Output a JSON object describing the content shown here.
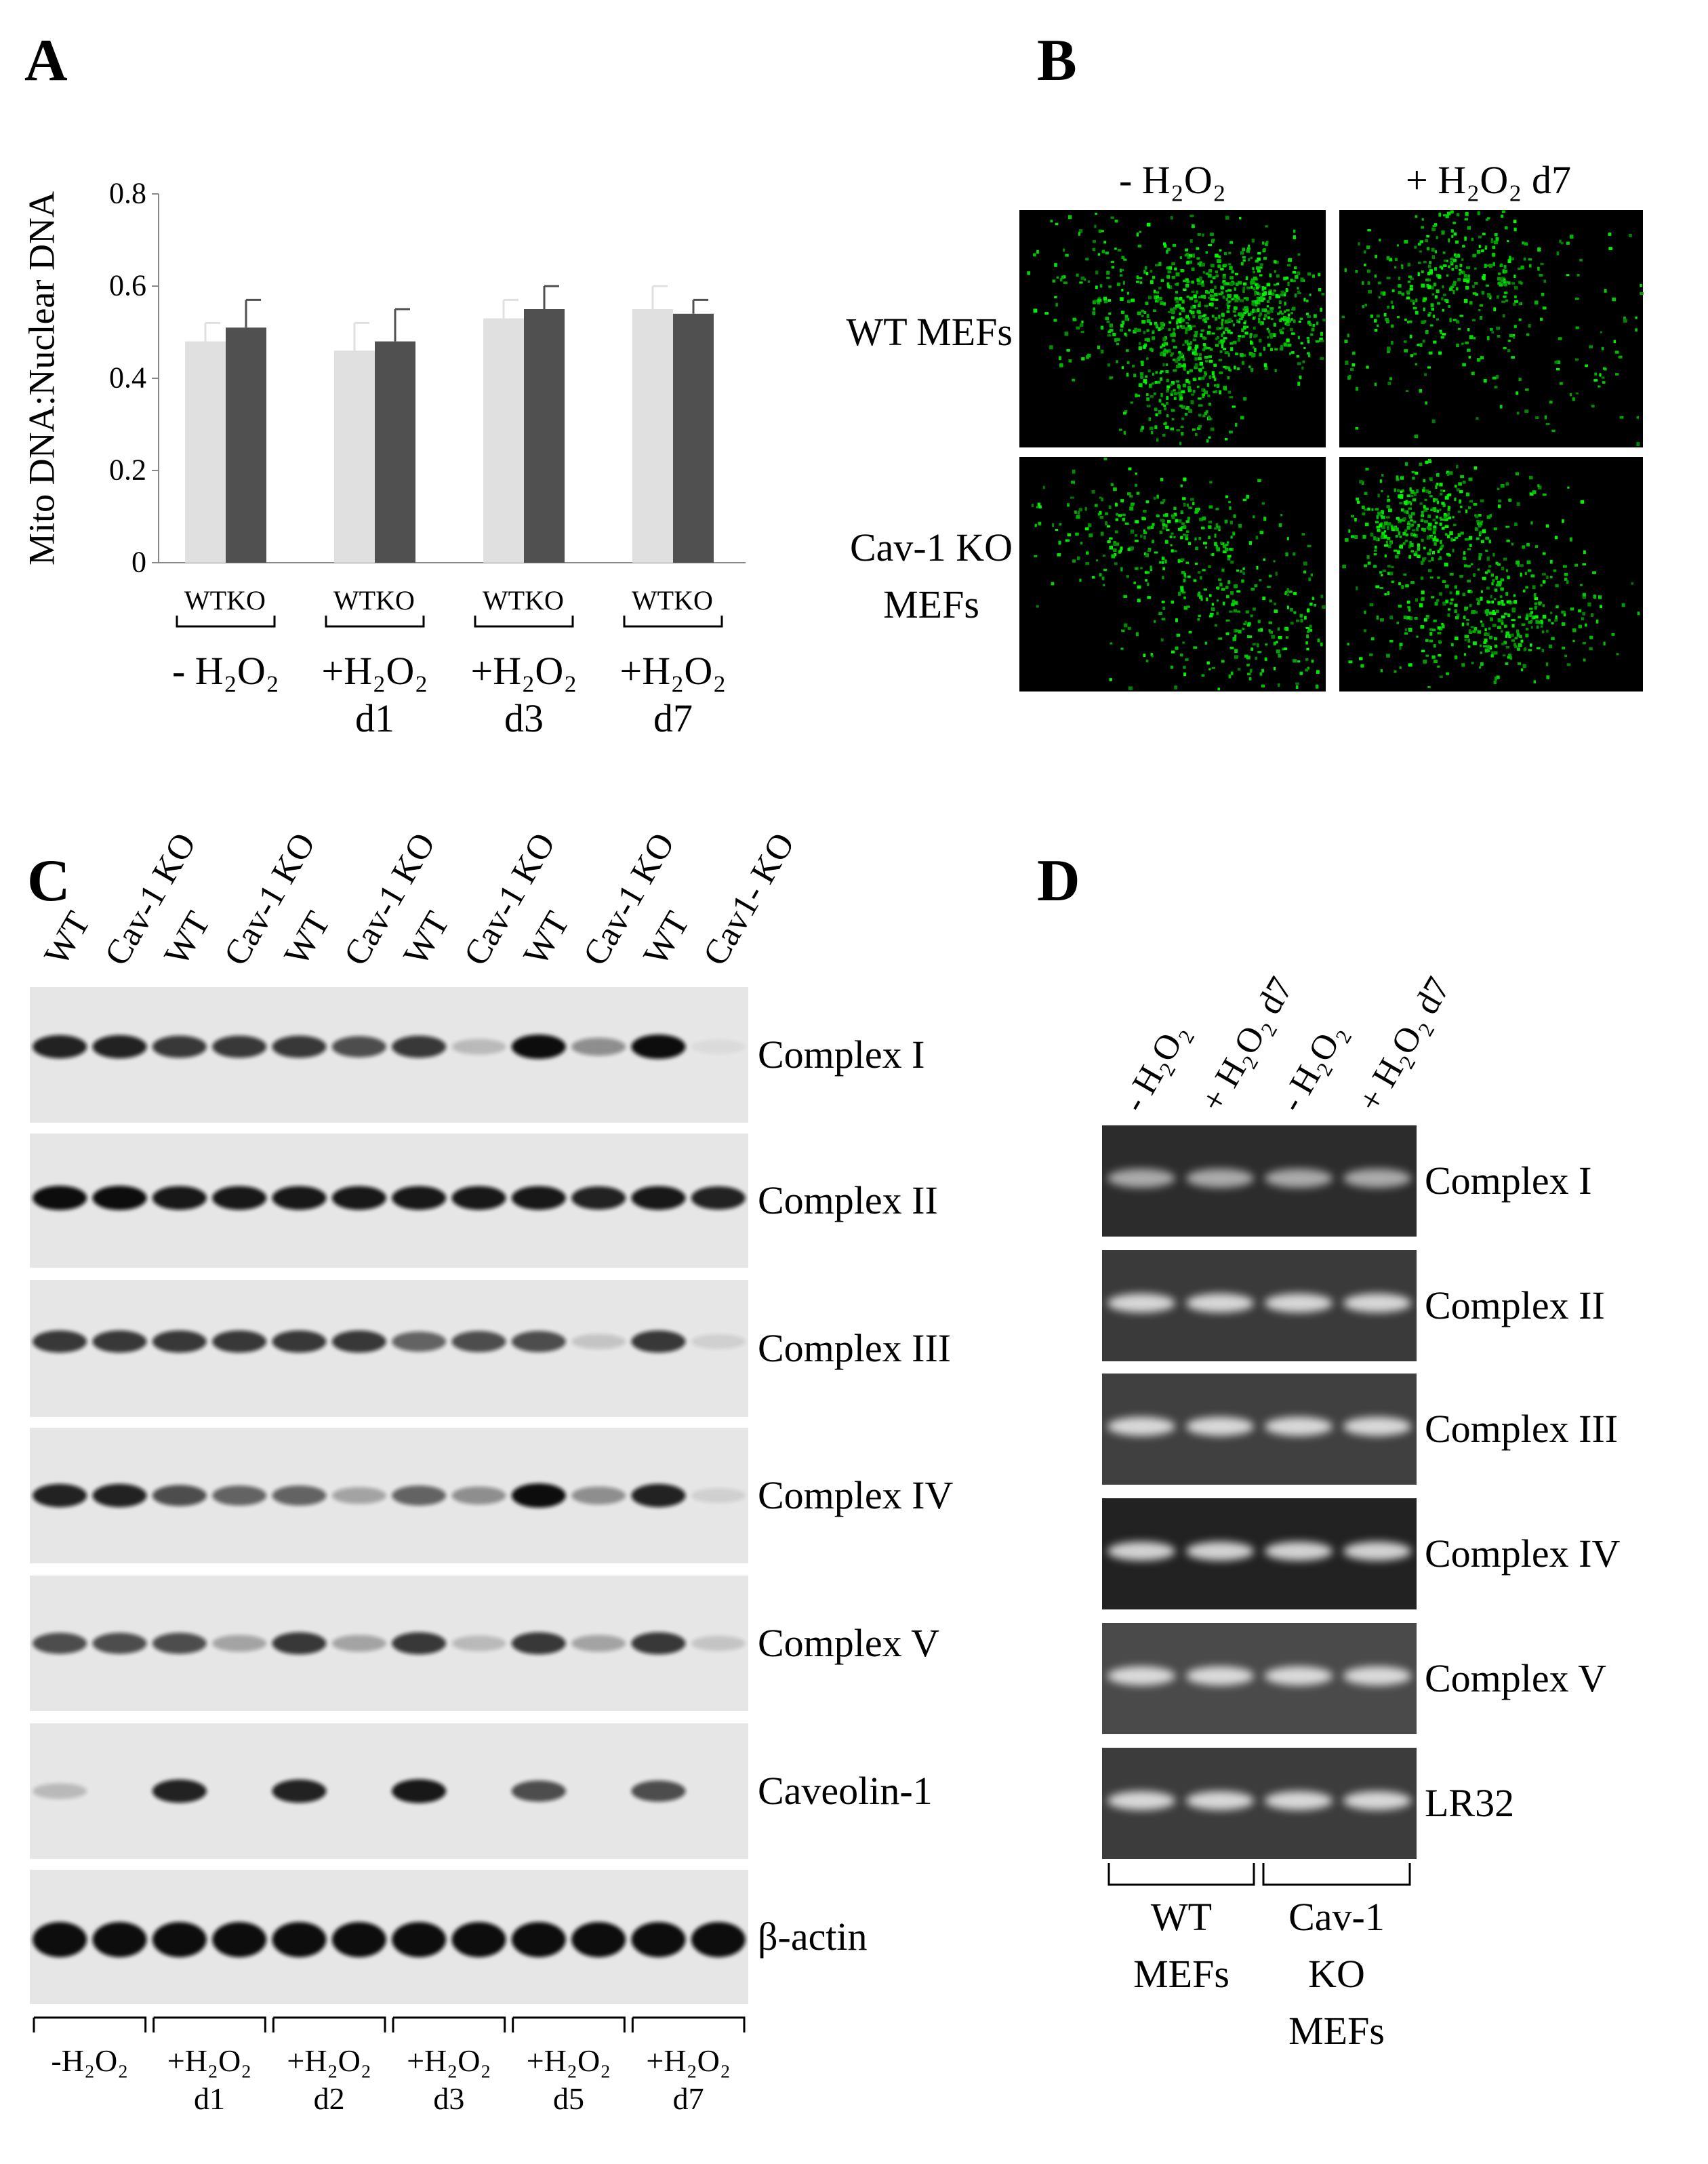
{
  "chart_data": {
    "type": "bar",
    "panel_label": "A",
    "ylabel": "Mito DNA:Nuclear DNA",
    "categories": [
      "- H₂O₂",
      "+H₂O₂\nd1",
      "+H₂O₂\nd3",
      "+H₂O₂\nd7"
    ],
    "series": [
      {
        "name": "WT",
        "color": "#e0e0e0",
        "values": [
          0.48,
          0.46,
          0.53,
          0.55
        ],
        "errors": [
          0.04,
          0.06,
          0.04,
          0.05
        ]
      },
      {
        "name": "KO",
        "color": "#505050",
        "values": [
          0.51,
          0.48,
          0.55,
          0.54
        ],
        "errors": [
          0.06,
          0.07,
          0.05,
          0.03
        ]
      }
    ],
    "ylim": [
      0,
      0.8
    ],
    "yticks": [
      0,
      0.2,
      0.4,
      0.6,
      0.8
    ]
  },
  "panel_b": {
    "label": "B",
    "columns": [
      "- H₂O₂",
      "+ H₂O₂ d7"
    ],
    "rows": [
      "WT MEFs",
      "Cav-1 KO\nMEFs"
    ]
  },
  "panel_c": {
    "label": "C",
    "lanes": [
      "WT",
      "Cav-1 KO",
      "WT",
      "Cav-1 KO",
      "WT",
      "Cav-1 KO",
      "WT",
      "Cav-1 KO",
      "WT",
      "Cav-1 KO",
      "WT",
      "Cav1- KO"
    ],
    "blots": [
      "Complex I",
      "Complex II",
      "Complex III",
      "Complex IV",
      "Complex V",
      "Caveolin-1",
      "β-actin"
    ],
    "groups": [
      "-H₂O₂",
      "+H₂O₂\nd1",
      "+H₂O₂\nd2",
      "+H₂O₂\nd3",
      "+H₂O₂\nd5",
      "+H₂O₂\nd7"
    ]
  },
  "panel_d": {
    "label": "D",
    "lanes": [
      "- H₂O₂",
      "+ H₂O₂ d7",
      "- H₂O₂",
      "+ H₂O₂ d7"
    ],
    "blots": [
      "Complex I",
      "Complex II",
      "Complex III",
      "Complex IV",
      "Complex V",
      "LR32"
    ],
    "groups": [
      "WT\nMEFs",
      "Cav-1\nKO\nMEFs"
    ]
  }
}
